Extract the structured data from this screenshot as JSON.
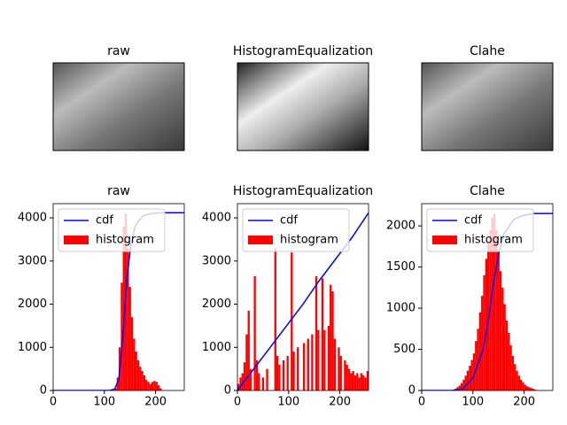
{
  "image_titles": [
    "raw",
    "HistogramEqualization",
    "Clahe"
  ],
  "chart_data": [
    {
      "type": "histogram",
      "title": "raw",
      "bins": [
        0,
        4,
        8,
        12,
        16,
        20,
        24,
        28,
        32,
        36,
        40,
        44,
        48,
        52,
        56,
        60,
        64,
        68,
        72,
        76,
        80,
        84,
        88,
        92,
        96,
        100,
        104,
        108,
        112,
        116,
        120,
        124,
        128,
        132,
        136,
        140,
        144,
        148,
        152,
        156,
        160,
        164,
        168,
        172,
        176,
        180,
        184,
        188,
        192,
        196,
        200,
        204,
        208,
        212,
        216,
        220,
        224,
        228,
        232,
        236,
        240,
        244,
        248,
        252,
        256
      ],
      "series": [
        {
          "name": "cdf",
          "color": "#0000ff",
          "x": [
            0,
            110,
            120,
            128,
            136,
            144,
            152,
            160,
            168,
            176,
            192,
            208,
            256
          ],
          "values": [
            0,
            0,
            30,
            250,
            1200,
            2600,
            3400,
            3800,
            3950,
            4050,
            4100,
            4120,
            4120
          ]
        },
        {
          "name": "histogram",
          "color": "#ff0000",
          "values": [
            0,
            0,
            0,
            0,
            0,
            0,
            0,
            0,
            0,
            0,
            0,
            0,
            0,
            0,
            0,
            0,
            0,
            0,
            0,
            0,
            0,
            0,
            0,
            0,
            0,
            0,
            0,
            0,
            0,
            0,
            50,
            300,
            1000,
            2500,
            3800,
            4100,
            3300,
            2400,
            1700,
            1200,
            900,
            700,
            550,
            450,
            350,
            250,
            200,
            150,
            200,
            220,
            200,
            120,
            50,
            0,
            0,
            0,
            0,
            0,
            0,
            0,
            0,
            0,
            0,
            0
          ]
        }
      ],
      "xlim": [
        0,
        256
      ],
      "xticks": [
        0,
        100,
        200
      ],
      "ylim": [
        0,
        4330
      ],
      "yticks": [
        0,
        1000,
        2000,
        3000,
        4000
      ],
      "legend": "upper left"
    },
    {
      "type": "histogram",
      "title": "HistogramEqualization",
      "bins": [
        0,
        4,
        8,
        12,
        16,
        20,
        24,
        28,
        32,
        36,
        40,
        44,
        48,
        52,
        56,
        60,
        64,
        68,
        72,
        76,
        80,
        84,
        88,
        92,
        96,
        100,
        104,
        108,
        112,
        116,
        120,
        124,
        128,
        132,
        136,
        140,
        144,
        148,
        152,
        156,
        160,
        164,
        168,
        172,
        176,
        180,
        184,
        188,
        192,
        196,
        200,
        204,
        208,
        212,
        216,
        220,
        224,
        228,
        232,
        236,
        240,
        244,
        248,
        252,
        256
      ],
      "series": [
        {
          "name": "cdf",
          "color": "#0000ff",
          "x": [
            0,
            32,
            64,
            96,
            128,
            160,
            192,
            224,
            256
          ],
          "values": [
            0,
            500,
            1000,
            1500,
            2000,
            2550,
            3050,
            3550,
            4120
          ]
        },
        {
          "name": "histogram",
          "color": "#ff0000",
          "values": [
            150,
            300,
            400,
            650,
            1300,
            1850,
            500,
            0,
            2650,
            700,
            400,
            0,
            300,
            0,
            500,
            0,
            0,
            0,
            3300,
            800,
            600,
            0,
            700,
            0,
            800,
            0,
            3200,
            900,
            0,
            1000,
            0,
            0,
            1100,
            0,
            1200,
            0,
            1300,
            0,
            2650,
            1400,
            0,
            2600,
            1400,
            0,
            1500,
            2450,
            2300,
            1200,
            0,
            1000,
            800,
            0,
            700,
            600,
            500,
            400,
            450,
            350,
            400,
            300,
            400,
            350,
            300,
            450
          ]
        }
      ],
      "xlim": [
        0,
        256
      ],
      "xticks": [
        0,
        100,
        200
      ],
      "ylim": [
        0,
        4330
      ],
      "yticks": [
        0,
        1000,
        2000,
        3000,
        4000
      ],
      "legend": "upper left"
    },
    {
      "type": "histogram",
      "title": "Clahe",
      "bins": [
        0,
        4,
        8,
        12,
        16,
        20,
        24,
        28,
        32,
        36,
        40,
        44,
        48,
        52,
        56,
        60,
        64,
        68,
        72,
        76,
        80,
        84,
        88,
        92,
        96,
        100,
        104,
        108,
        112,
        116,
        120,
        124,
        128,
        132,
        136,
        140,
        144,
        148,
        152,
        156,
        160,
        164,
        168,
        172,
        176,
        180,
        184,
        188,
        192,
        196,
        200,
        204,
        208,
        212,
        216,
        220,
        224,
        228,
        232,
        236,
        240,
        244,
        248,
        252,
        256
      ],
      "series": [
        {
          "name": "cdf",
          "color": "#0000ff",
          "x": [
            0,
            60,
            80,
            100,
            120,
            130,
            140,
            150,
            160,
            180,
            200,
            220,
            256
          ],
          "values": [
            0,
            0,
            20,
            150,
            500,
            850,
            1300,
            1650,
            1900,
            2080,
            2130,
            2150,
            2150
          ]
        },
        {
          "name": "histogram",
          "color": "#ff0000",
          "values": [
            0,
            0,
            0,
            0,
            0,
            0,
            0,
            0,
            0,
            0,
            0,
            0,
            0,
            0,
            0,
            10,
            20,
            40,
            60,
            90,
            130,
            180,
            240,
            300,
            370,
            450,
            600,
            750,
            950,
            1150,
            1400,
            1600,
            1800,
            1950,
            2100,
            2150,
            1950,
            1700,
            1450,
            1250,
            1050,
            850,
            700,
            550,
            420,
            320,
            240,
            180,
            130,
            100,
            70,
            50,
            40,
            30,
            20,
            10,
            0,
            0,
            0,
            0,
            0,
            0,
            0,
            0
          ]
        }
      ],
      "xlim": [
        0,
        256
      ],
      "xticks": [
        0,
        100,
        200
      ],
      "ylim": [
        0,
        2270
      ],
      "yticks": [
        0,
        500,
        1000,
        1500,
        2000
      ],
      "legend": "upper left"
    }
  ]
}
